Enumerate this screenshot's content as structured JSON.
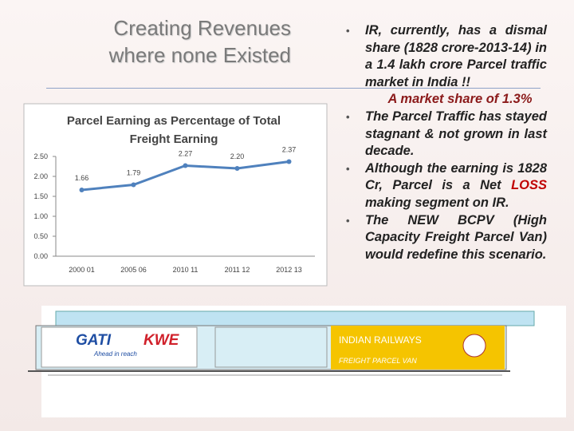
{
  "slide": {
    "title_lines": [
      "Creating Revenues",
      "where none Existed"
    ],
    "bullets": [
      {
        "parts": [
          "IR, currently, has a dismal share (1828 crore-2013-14) in a 1.4 lakh crore Parcel traffic market in India !!"
        ]
      },
      {
        "parts": [
          "The Parcel Traffic has stayed stagnant & not grown in last decade."
        ]
      },
      {
        "parts": [
          "Although the earning is 1828 Cr, Parcel is a Net ",
          "LOSS",
          " making segment on IR."
        ]
      },
      {
        "parts": [
          "The NEW BCPV (High Capacity Freight Parcel Van) would redefine this scenario."
        ]
      }
    ],
    "highlight": "A market share of 1.3%",
    "van": {
      "logo": "GATI",
      "logo2": "KWE",
      "tagline": "Ahead in reach",
      "line1": "INDIAN RAILWAYS",
      "line2": "FREIGHT PARCEL VAN"
    }
  },
  "chart_data": {
    "type": "line",
    "title_lines": [
      "Parcel Earning as Percentage of Total",
      "Freight Earning"
    ],
    "categories": [
      "2000 01",
      "2005 06",
      "2010 11",
      "2011 12",
      "2012 13"
    ],
    "values": [
      1.66,
      1.79,
      2.27,
      2.2,
      2.37
    ],
    "value_labels": [
      "1.66",
      "1.79",
      "2.27",
      "2.20",
      "2.37"
    ],
    "color": "#4f81bd",
    "ylim": [
      0,
      2.5
    ],
    "yticks": [
      {
        "value": 0,
        "label": "0.00"
      },
      {
        "value": 0.5,
        "label": "0.50"
      },
      {
        "value": 1,
        "label": "1.00"
      },
      {
        "value": 1.5,
        "label": "1.50"
      },
      {
        "value": 2,
        "label": "2.00"
      },
      {
        "value": 2.5,
        "label": "2.50"
      }
    ]
  }
}
